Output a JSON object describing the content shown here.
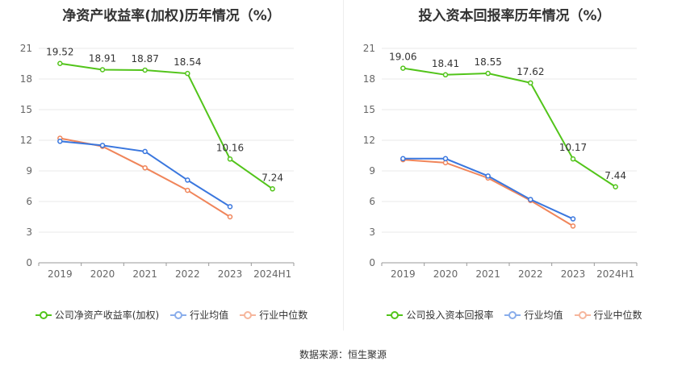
{
  "footer": {
    "source": "数据来源：恒生聚源"
  },
  "chart_data": [
    {
      "type": "line",
      "title": "净资产收益率(加权)历年情况（%）",
      "categories": [
        "2019",
        "2020",
        "2021",
        "2022",
        "2023",
        "2024H1"
      ],
      "yticks": [
        "0",
        "3",
        "6",
        "9",
        "12",
        "15",
        "18",
        "21"
      ],
      "ylim": [
        0,
        21
      ],
      "grid": true,
      "legend_position": "bottom",
      "series": [
        {
          "name": "公司净资产收益率(加权)",
          "color": "#52c41a",
          "labels": true,
          "values": [
            19.52,
            18.91,
            18.87,
            18.54,
            10.16,
            7.24
          ],
          "value_labels": [
            "19.52",
            "18.91",
            "18.87",
            "18.54",
            "10.16",
            "7.24"
          ]
        },
        {
          "name": "行业均值",
          "color": "#3a77de",
          "labels": false,
          "values": [
            11.9,
            11.5,
            10.9,
            8.1,
            5.5,
            null
          ]
        },
        {
          "name": "行业中位数",
          "color": "#f0855a",
          "labels": false,
          "values": [
            12.2,
            11.4,
            9.3,
            7.1,
            4.5,
            null
          ]
        }
      ]
    },
    {
      "type": "line",
      "title": "投入资本回报率历年情况（%）",
      "categories": [
        "2019",
        "2020",
        "2021",
        "2022",
        "2023",
        "2024H1"
      ],
      "yticks": [
        "0",
        "3",
        "6",
        "9",
        "12",
        "15",
        "18",
        "21"
      ],
      "ylim": [
        0,
        21
      ],
      "grid": true,
      "legend_position": "bottom",
      "series": [
        {
          "name": "公司投入资本回报率",
          "color": "#52c41a",
          "labels": true,
          "values": [
            19.06,
            18.41,
            18.55,
            17.62,
            10.17,
            7.44
          ],
          "value_labels": [
            "19.06",
            "18.41",
            "18.55",
            "17.62",
            "10.17",
            "7.44"
          ]
        },
        {
          "name": "行业均值",
          "color": "#3a77de",
          "labels": false,
          "values": [
            10.2,
            10.2,
            8.5,
            6.2,
            4.3,
            null
          ]
        },
        {
          "name": "行业中位数",
          "color": "#f0855a",
          "labels": false,
          "values": [
            10.1,
            9.8,
            8.3,
            6.1,
            3.6,
            null
          ]
        }
      ]
    }
  ]
}
